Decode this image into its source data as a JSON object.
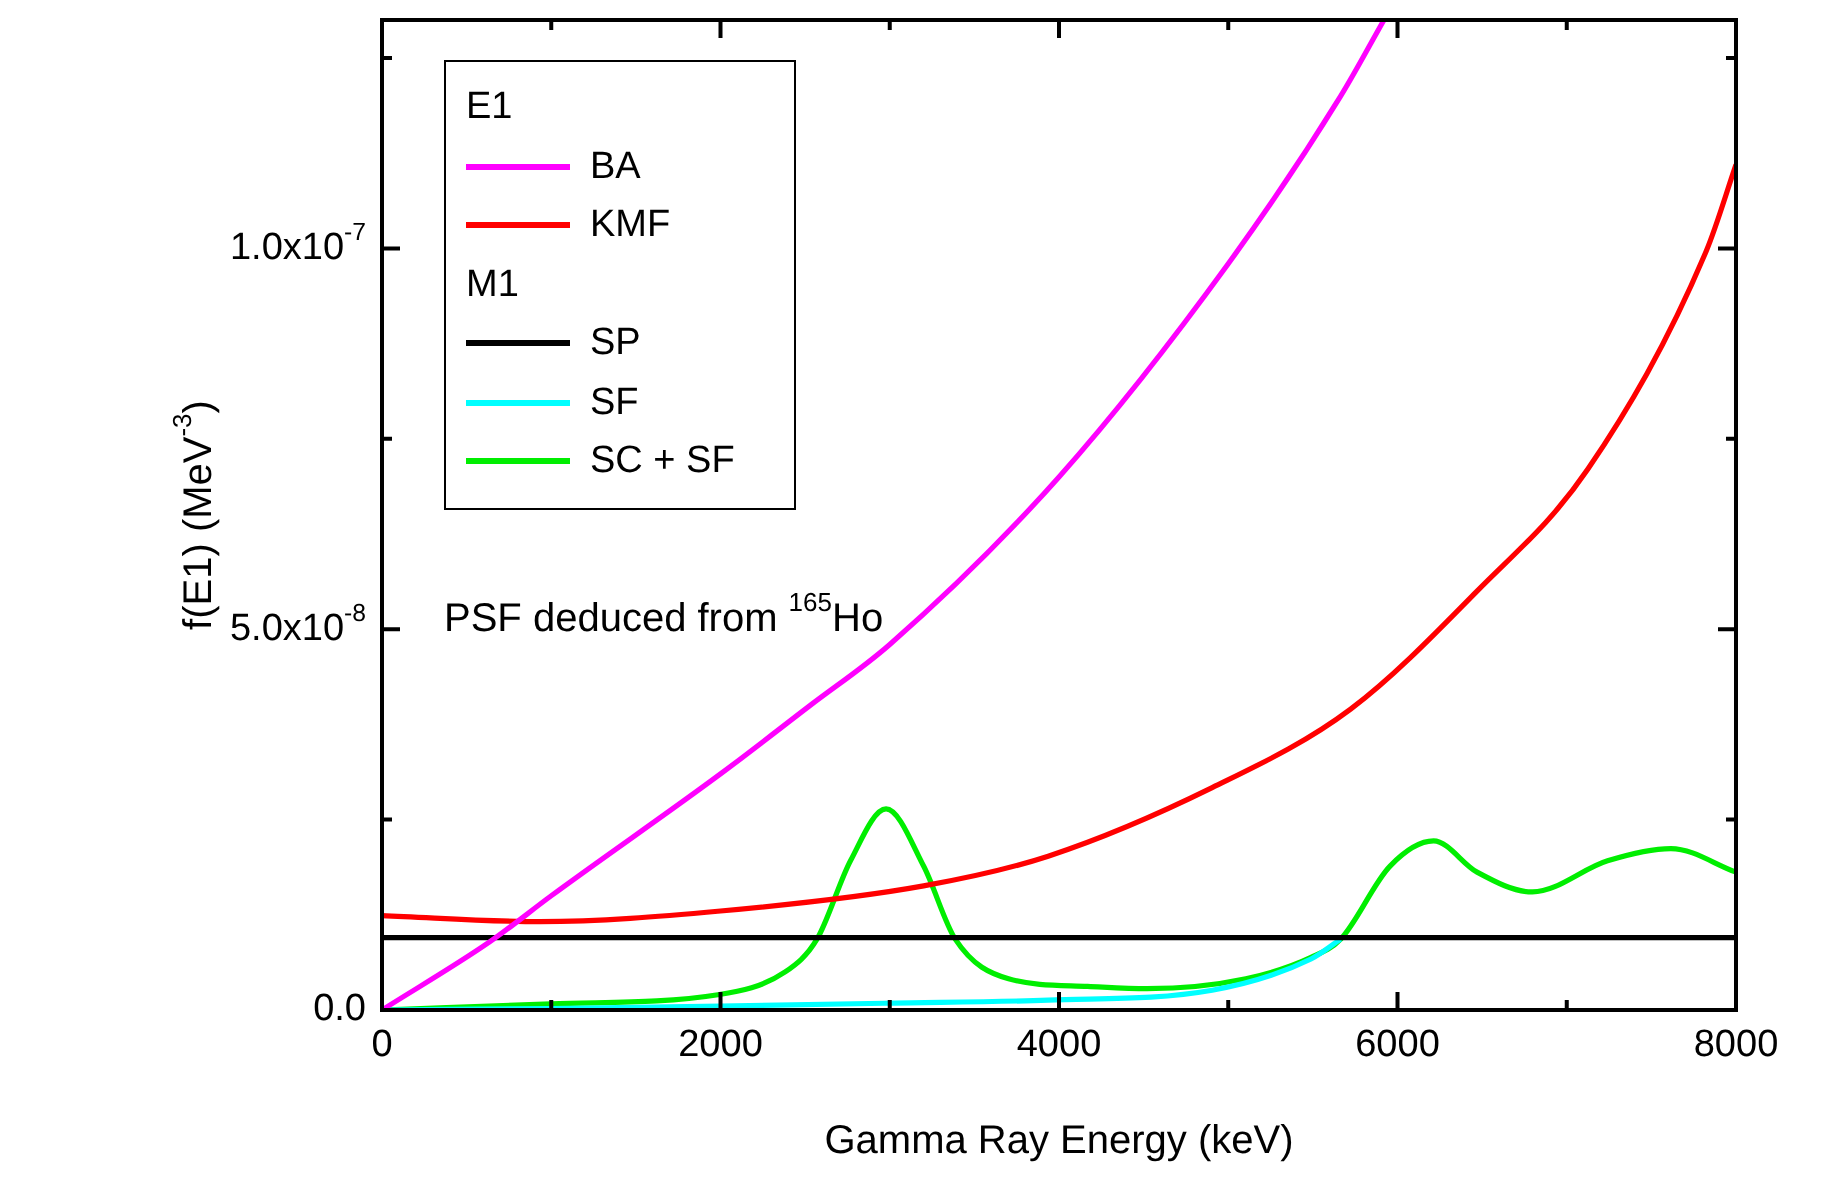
{
  "chart_data": {
    "type": "line",
    "xlabel": "Gamma Ray Energy (keV)",
    "ylabel": "f(E1) (MeV$^{-3}$)",
    "annotations": [
      "E1",
      "M1",
      "PSF deduced from $^{165}$Ho"
    ],
    "legend": "top left",
    "marker": "none",
    "xlim": [
      0,
      8000
    ],
    "ylim": [
      0,
      1.3e-07
    ],
    "xticks": [
      0,
      {
        "value": 1000,
        "label": null
      },
      2000,
      {
        "value": 3000,
        "label": null
      },
      4000,
      {
        "value": 5000,
        "label": null
      },
      6000,
      {
        "value": 7000,
        "label": null
      },
      8000
    ],
    "yticks": [
      {
        "value": 0,
        "label": "0.0"
      },
      {
        "value": 2.5e-08,
        "label": null
      },
      {
        "value": 5e-08,
        "label": "5.0x10$^{-8}$"
      },
      {
        "value": 7.5e-08,
        "label": null
      },
      {
        "value": 1e-07,
        "label": "1.0x10$^{-7}$"
      },
      {
        "value": 1.25e-07,
        "label": null
      }
    ],
    "series": [
      {
        "name": "BA",
        "color": "#ff00ff",
        "x": [
          0,
          640,
          1000,
          2000,
          2530,
          3000,
          4000,
          5000,
          5664,
          5920
        ],
        "values": [
          0,
          9e-09,
          1.5e-08,
          3.1e-08,
          4e-08,
          4.8e-08,
          7e-08,
          9.8e-08,
          1.2e-07,
          1.3e-07
        ]
      },
      {
        "name": "KMF",
        "color": "#ff0000",
        "x": [
          0,
          934,
          2000,
          3200,
          3936,
          4905,
          5723,
          6470,
          7124,
          7825,
          8000
        ],
        "values": [
          1.24e-08,
          1.16e-08,
          1.3e-08,
          1.63e-08,
          2.02e-08,
          2.92e-08,
          3.95e-08,
          5.5e-08,
          7.1e-08,
          9.97e-08,
          1.11e-07
        ]
      },
      {
        "name": "SP",
        "color": "#000000",
        "x": [
          0,
          8000
        ],
        "values": [
          9.5e-09,
          9.5e-09
        ]
      },
      {
        "name": "SF",
        "color": "#00ffff",
        "x": [
          0,
          1000,
          2000,
          3000,
          3936,
          4905,
          5489,
          5664
        ],
        "values": [
          0,
          2e-10,
          5e-10,
          9e-10,
          1.3e-09,
          2.6e-09,
          6.7e-09,
          9.3e-09
        ]
      },
      {
        "name": "SC + SF",
        "color": "#00ee00",
        "x": [
          0,
          1000,
          1985,
          2382,
          2570,
          2768,
          2978,
          3200,
          3387,
          3702,
          4169,
          4520,
          5104,
          5489,
          5664,
          5956,
          6213,
          6470,
          6797,
          7241,
          7615,
          8000
        ],
        "values": [
          0,
          8e-10,
          2e-09,
          5e-09,
          9.3e-09,
          1.96e-08,
          2.64e-08,
          1.89e-08,
          9.3e-09,
          4.1e-09,
          3.1e-09,
          2.8e-09,
          4.1e-09,
          6.9e-09,
          9.3e-09,
          1.89e-08,
          2.22e-08,
          1.81e-08,
          1.55e-08,
          1.96e-08,
          2.12e-08,
          1.81e-08
        ]
      }
    ]
  }
}
